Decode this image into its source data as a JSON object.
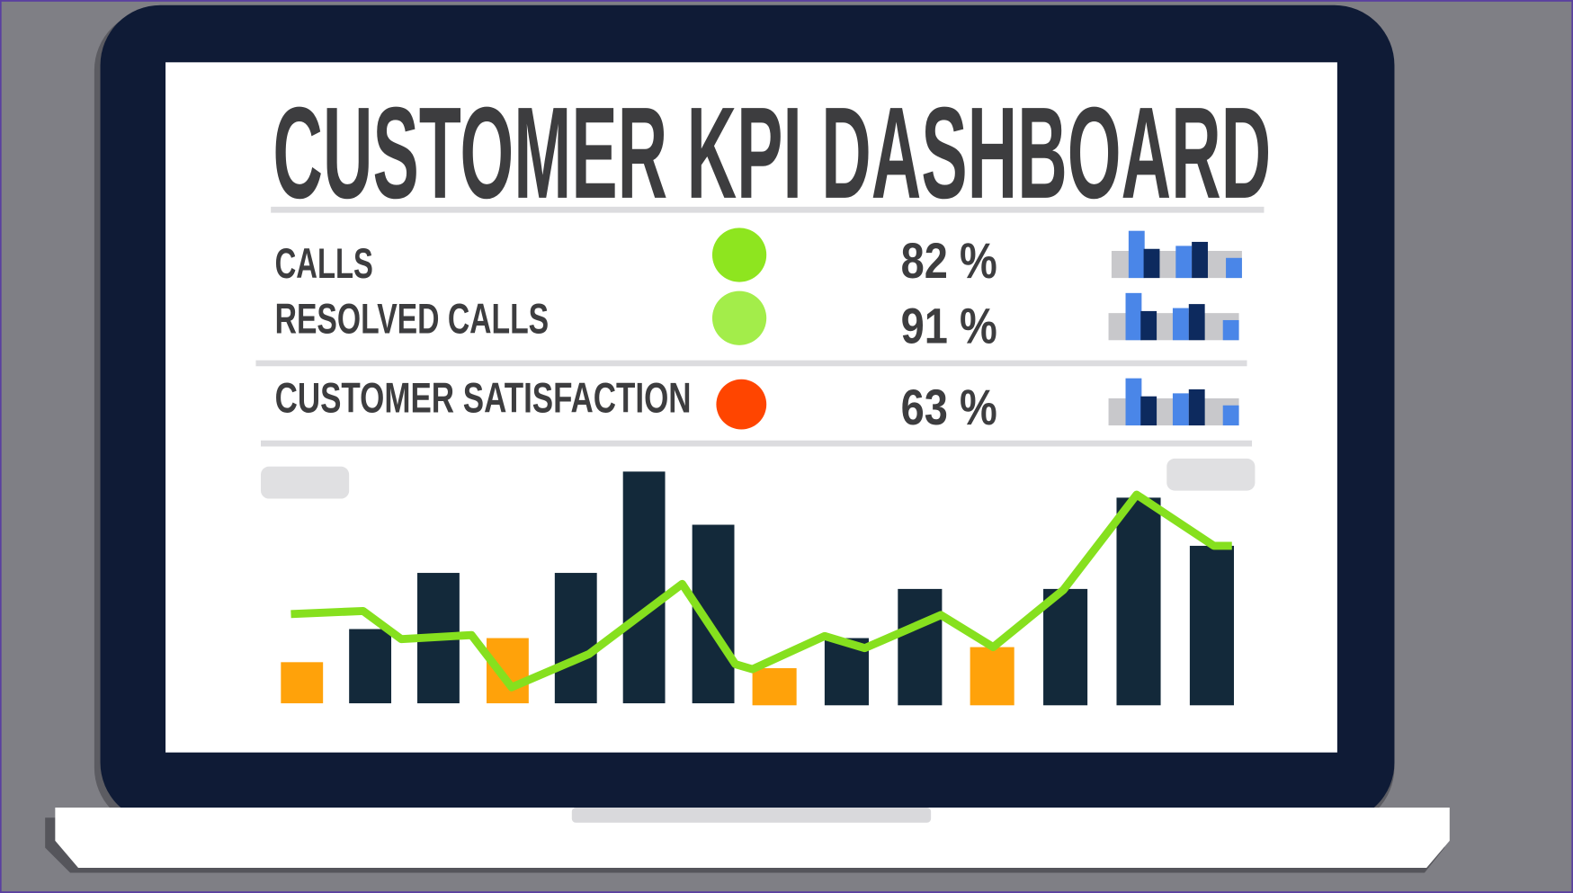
{
  "title": "CUSTOMER KPI DASHBOARD",
  "kpis": [
    {
      "label": "CALLS",
      "value": "82 %"
    },
    {
      "label": "RESOLVED CALLS",
      "value": "91 %"
    },
    {
      "label": "CUSTOMER SATISFACTION",
      "value": "63 %"
    }
  ]
}
